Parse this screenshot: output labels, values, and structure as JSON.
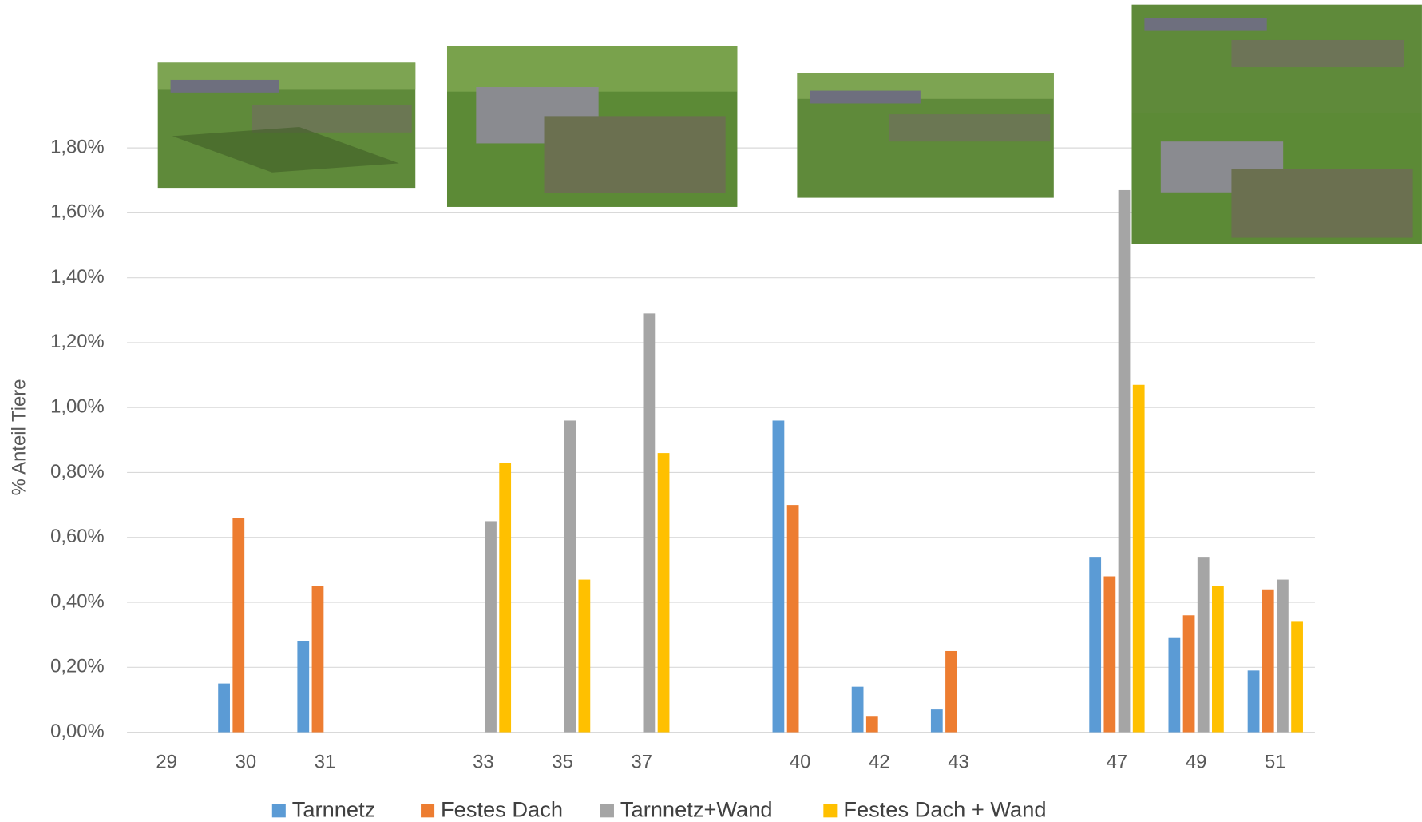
{
  "chart_data": {
    "type": "bar",
    "y_label": "% Anteil Tiere",
    "categories": [
      "29",
      "30",
      "31",
      null,
      "33",
      "35",
      "37",
      null,
      "40",
      "42",
      "43",
      null,
      "47",
      "49",
      "51"
    ],
    "series": [
      {
        "name": "Tarnnetz",
        "color": "#5b9bd5",
        "values": [
          null,
          0.15,
          0.28,
          null,
          null,
          null,
          null,
          null,
          0.96,
          0.14,
          0.07,
          null,
          0.54,
          0.29,
          0.19
        ]
      },
      {
        "name": "Festes Dach",
        "color": "#ed7d31",
        "values": [
          null,
          0.66,
          0.45,
          null,
          null,
          null,
          null,
          null,
          0.7,
          0.05,
          0.25,
          null,
          0.48,
          0.36,
          0.44
        ]
      },
      {
        "name": "Tarnnetz+Wand",
        "color": "#a5a5a5",
        "values": [
          null,
          null,
          null,
          null,
          0.65,
          0.96,
          1.29,
          null,
          null,
          null,
          null,
          null,
          1.67,
          0.54,
          0.47
        ]
      },
      {
        "name": "Festes Dach + Wand",
        "color": "#ffc000",
        "values": [
          null,
          null,
          null,
          null,
          0.83,
          0.47,
          0.86,
          null,
          null,
          null,
          null,
          null,
          1.07,
          0.45,
          0.34
        ]
      }
    ],
    "ylim": [
      0,
      1.8
    ],
    "yticks": [
      {
        "value": 0,
        "label": "0,00%"
      },
      {
        "value": 0.2,
        "label": "0,20%"
      },
      {
        "value": 0.4,
        "label": "0,40%"
      },
      {
        "value": 0.6,
        "label": "0,60%"
      },
      {
        "value": 0.8,
        "label": "0,80%"
      },
      {
        "value": 1.0,
        "label": "1,00%"
      },
      {
        "value": 1.2,
        "label": "1,20%"
      },
      {
        "value": 1.4,
        "label": "1,40%"
      },
      {
        "value": 1.6,
        "label": "1,60%"
      },
      {
        "value": 1.8,
        "label": "1,80%"
      }
    ],
    "grid": true
  }
}
